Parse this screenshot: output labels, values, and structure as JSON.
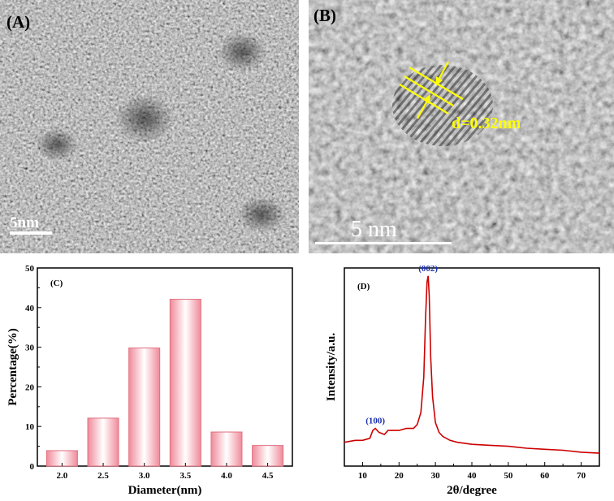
{
  "panel_a": {
    "label": "(A)",
    "scale_bar": "5nm"
  },
  "panel_b": {
    "label": "(B)",
    "scale_bar": "5 nm",
    "annotation": "d=0.32nm"
  },
  "colors": {
    "bar_edge": "#e07080",
    "bar_fill": "#f4a6b0",
    "xrd_line": "#cc0000",
    "peak_label": "#1a2fb0",
    "annotation": "#ffff00"
  },
  "chart_data": [
    {
      "panel": "(C)",
      "type": "bar",
      "categories": [
        "2.0",
        "2.5",
        "3.0",
        "3.5",
        "4.0",
        "4.5"
      ],
      "x": [
        2.0,
        2.5,
        3.0,
        3.5,
        4.0,
        4.5
      ],
      "values": [
        3.9,
        12.1,
        29.8,
        42.1,
        8.6,
        5.2
      ],
      "xlabel": "Diameter(nm)",
      "ylabel": "Percentage(%)",
      "xlim": [
        1.7,
        4.8
      ],
      "ylim": [
        0,
        50
      ],
      "yticks": [
        0,
        10,
        20,
        30,
        40,
        50
      ],
      "ytick_labels": [
        "0",
        "10",
        "20",
        "30",
        "40",
        "50"
      ],
      "grid": false
    },
    {
      "panel": "(D)",
      "type": "line",
      "xlabel": "2θ/degree",
      "ylabel": "Intensity/a.u.",
      "xlim": [
        5,
        75
      ],
      "xticks": [
        10,
        20,
        30,
        40,
        50,
        60,
        70
      ],
      "xtick_labels": [
        "10",
        "20",
        "30",
        "40",
        "50",
        "60",
        "70"
      ],
      "ylim": [
        0,
        1
      ],
      "peaks": [
        {
          "label": "(100)",
          "x": 13.5,
          "y": 0.19
        },
        {
          "label": "(002)",
          "x": 28.0,
          "y": 0.96
        }
      ],
      "x": [
        5,
        8,
        10,
        12,
        12.8,
        13.5,
        14.5,
        16,
        17,
        18,
        20,
        22,
        24,
        25,
        26,
        26.8,
        27.3,
        27.7,
        28.0,
        28.3,
        28.7,
        29.2,
        30,
        31,
        32,
        34,
        36,
        40,
        45,
        50,
        55,
        60,
        65,
        70,
        75
      ],
      "values": [
        0.12,
        0.13,
        0.13,
        0.14,
        0.18,
        0.19,
        0.17,
        0.16,
        0.18,
        0.18,
        0.18,
        0.19,
        0.19,
        0.21,
        0.27,
        0.45,
        0.75,
        0.93,
        0.96,
        0.86,
        0.55,
        0.35,
        0.22,
        0.17,
        0.15,
        0.13,
        0.12,
        0.11,
        0.105,
        0.1,
        0.09,
        0.085,
        0.08,
        0.07,
        0.065
      ],
      "grid": false
    }
  ]
}
